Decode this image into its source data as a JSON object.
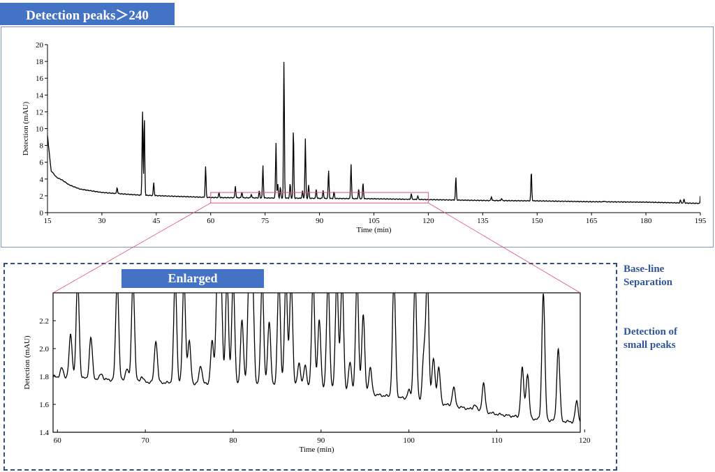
{
  "header": {
    "title": "Detection peaks＞240"
  },
  "enlarged_label": "Enlarged",
  "notes": {
    "baseline": [
      "Base-line",
      "Separation"
    ],
    "small_peaks": [
      "Detection of",
      "small peaks"
    ]
  },
  "colors": {
    "banner": "#4472c4",
    "trace": "#000000",
    "zoom_box": "#e0507a",
    "note_text": "#2f5597",
    "frame_dash": "#2e4f86"
  },
  "chart_data": [
    {
      "type": "line",
      "title": "",
      "xlabel": "Time (min)",
      "ylabel": "Detection (mAU)",
      "xlim": [
        15,
        195
      ],
      "ylim": [
        0,
        20
      ],
      "xticks": [
        15,
        30,
        45,
        60,
        75,
        90,
        105,
        120,
        135,
        150,
        165,
        180,
        195
      ],
      "yticks": [
        0,
        2,
        4,
        6,
        8,
        10,
        12,
        14,
        16,
        18,
        20
      ],
      "baseline": [
        [
          15,
          9.2
        ],
        [
          16,
          5.0
        ],
        [
          17.5,
          4.2
        ],
        [
          19,
          3.9
        ],
        [
          21,
          3.3
        ],
        [
          24,
          2.8
        ],
        [
          30,
          2.4
        ],
        [
          40,
          2.1
        ],
        [
          50,
          1.95
        ],
        [
          60,
          1.8
        ],
        [
          75,
          1.75
        ],
        [
          90,
          1.7
        ],
        [
          105,
          1.65
        ],
        [
          120,
          1.55
        ],
        [
          135,
          1.45
        ],
        [
          150,
          1.4
        ],
        [
          165,
          1.3
        ],
        [
          180,
          1.25
        ],
        [
          195,
          1.1
        ]
      ],
      "peaks": [
        {
          "t": 34.2,
          "h": 3.0
        },
        {
          "t": 36.8,
          "h": 2.2
        },
        {
          "t": 41.2,
          "h": 12.3
        },
        {
          "t": 41.7,
          "h": 11.6
        },
        {
          "t": 44.3,
          "h": 3.6
        },
        {
          "t": 58.6,
          "h": 5.5
        },
        {
          "t": 62.3,
          "h": 2.4
        },
        {
          "t": 66.8,
          "h": 3.2
        },
        {
          "t": 68.6,
          "h": 2.5
        },
        {
          "t": 71.2,
          "h": 2.2
        },
        {
          "t": 73.4,
          "h": 2.6
        },
        {
          "t": 74.4,
          "h": 5.6
        },
        {
          "t": 78.0,
          "h": 8.3
        },
        {
          "t": 78.5,
          "h": 3.4
        },
        {
          "t": 79.2,
          "h": 3.1
        },
        {
          "t": 80.2,
          "h": 18.0
        },
        {
          "t": 81.9,
          "h": 3.5
        },
        {
          "t": 82.8,
          "h": 10.0
        },
        {
          "t": 85.3,
          "h": 2.6
        },
        {
          "t": 86.1,
          "h": 8.8
        },
        {
          "t": 87.0,
          "h": 3.3
        },
        {
          "t": 89.1,
          "h": 2.8
        },
        {
          "t": 91.0,
          "h": 2.7
        },
        {
          "t": 92.5,
          "h": 5.1
        },
        {
          "t": 94.0,
          "h": 2.5
        },
        {
          "t": 98.7,
          "h": 5.8
        },
        {
          "t": 100.8,
          "h": 2.8
        },
        {
          "t": 102.0,
          "h": 3.6
        },
        {
          "t": 115.3,
          "h": 2.3
        },
        {
          "t": 117.1,
          "h": 2.0
        },
        {
          "t": 127.6,
          "h": 4.2
        },
        {
          "t": 137.4,
          "h": 1.9
        },
        {
          "t": 140.2,
          "h": 1.7
        },
        {
          "t": 148.4,
          "h": 5.0
        },
        {
          "t": 168.5,
          "h": 1.4
        },
        {
          "t": 189.5,
          "h": 1.5
        },
        {
          "t": 190.5,
          "h": 1.6
        },
        {
          "t": 195.2,
          "h": 4.8
        }
      ],
      "zoom_window": {
        "x": [
          60,
          120
        ],
        "y": [
          1.4,
          2.4
        ]
      }
    },
    {
      "type": "line",
      "title": "",
      "xlabel": "Time (min)",
      "ylabel": "Detection (mAU)",
      "xlim": [
        59.5,
        119.5
      ],
      "ylim": [
        1.4,
        2.4
      ],
      "xticks": [
        60,
        70,
        80,
        90,
        100,
        110,
        120
      ],
      "yticks": [
        1.4,
        1.6,
        1.8,
        2.0,
        2.2
      ],
      "baseline": [
        [
          59.5,
          1.8
        ],
        [
          65,
          1.78
        ],
        [
          70,
          1.76
        ],
        [
          75,
          1.75
        ],
        [
          80,
          1.74
        ],
        [
          85,
          1.73
        ],
        [
          90,
          1.72
        ],
        [
          95,
          1.68
        ],
        [
          100,
          1.64
        ],
        [
          105,
          1.59
        ],
        [
          110,
          1.53
        ],
        [
          115,
          1.49
        ],
        [
          119.5,
          1.47
        ]
      ],
      "peaks": [
        {
          "t": 60.5,
          "h": 1.86
        },
        {
          "t": 61.5,
          "h": 2.1
        },
        {
          "t": 62.3,
          "h": 2.5
        },
        {
          "t": 63.8,
          "h": 2.08
        },
        {
          "t": 65.0,
          "h": 1.82
        },
        {
          "t": 66.8,
          "h": 2.5
        },
        {
          "t": 67.9,
          "h": 1.86
        },
        {
          "t": 68.6,
          "h": 2.5
        },
        {
          "t": 69.6,
          "h": 1.8
        },
        {
          "t": 71.2,
          "h": 2.06
        },
        {
          "t": 73.4,
          "h": 2.5
        },
        {
          "t": 74.4,
          "h": 2.5
        },
        {
          "t": 75.0,
          "h": 2.05
        },
        {
          "t": 76.3,
          "h": 1.88
        },
        {
          "t": 77.6,
          "h": 2.05
        },
        {
          "t": 78.2,
          "h": 2.5
        },
        {
          "t": 78.6,
          "h": 2.5
        },
        {
          "t": 79.3,
          "h": 2.5
        },
        {
          "t": 80.0,
          "h": 2.5
        },
        {
          "t": 81.0,
          "h": 2.2
        },
        {
          "t": 81.8,
          "h": 2.5
        },
        {
          "t": 82.2,
          "h": 2.5
        },
        {
          "t": 83.3,
          "h": 2.5
        },
        {
          "t": 84.1,
          "h": 2.2
        },
        {
          "t": 85.2,
          "h": 2.5
        },
        {
          "t": 86.0,
          "h": 2.5
        },
        {
          "t": 86.6,
          "h": 2.5
        },
        {
          "t": 87.5,
          "h": 1.9
        },
        {
          "t": 88.2,
          "h": 1.88
        },
        {
          "t": 89.1,
          "h": 2.5
        },
        {
          "t": 89.8,
          "h": 2.2
        },
        {
          "t": 90.8,
          "h": 2.5
        },
        {
          "t": 91.8,
          "h": 2.5
        },
        {
          "t": 92.4,
          "h": 2.5
        },
        {
          "t": 93.3,
          "h": 1.9
        },
        {
          "t": 94.1,
          "h": 2.5
        },
        {
          "t": 94.8,
          "h": 2.24
        },
        {
          "t": 95.6,
          "h": 1.86
        },
        {
          "t": 98.3,
          "h": 2.5
        },
        {
          "t": 100.0,
          "h": 1.7
        },
        {
          "t": 100.7,
          "h": 2.5
        },
        {
          "t": 101.7,
          "h": 1.95
        },
        {
          "t": 102.1,
          "h": 2.5
        },
        {
          "t": 102.8,
          "h": 1.93
        },
        {
          "t": 103.4,
          "h": 1.86
        },
        {
          "t": 105.1,
          "h": 1.72
        },
        {
          "t": 107.5,
          "h": 1.6
        },
        {
          "t": 108.5,
          "h": 1.75
        },
        {
          "t": 112.9,
          "h": 1.86
        },
        {
          "t": 113.5,
          "h": 1.82
        },
        {
          "t": 115.3,
          "h": 2.4
        },
        {
          "t": 117.0,
          "h": 2.0
        },
        {
          "t": 119.1,
          "h": 1.62
        }
      ]
    }
  ]
}
